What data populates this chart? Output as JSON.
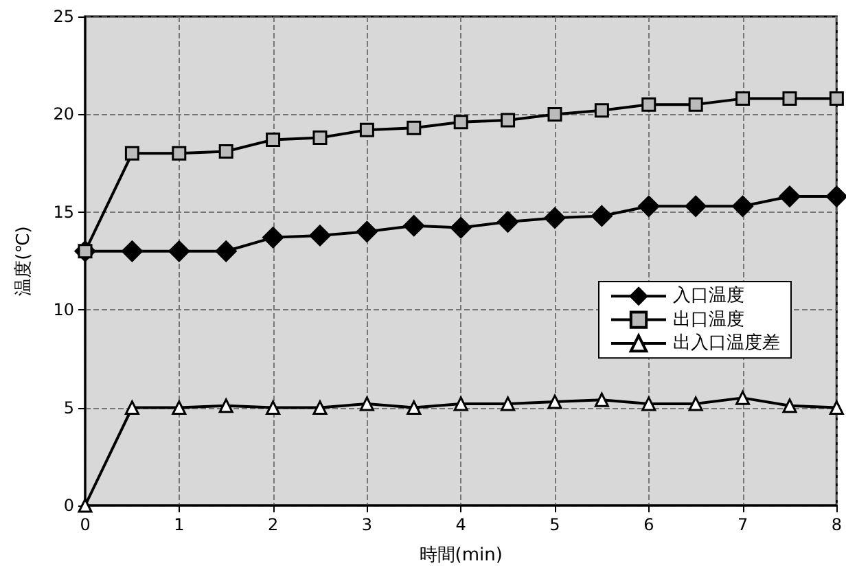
{
  "chart_data": {
    "type": "line",
    "xlabel": "時間(min)",
    "ylabel": "温度(℃)",
    "x": [
      0,
      0.5,
      1,
      1.5,
      2,
      2.5,
      3,
      3.5,
      4,
      4.5,
      5,
      5.5,
      6,
      6.5,
      7,
      7.5,
      8
    ],
    "series": [
      {
        "name": "入口温度",
        "color": "#000000",
        "marker": "diamond",
        "values": [
          13,
          13,
          13,
          13,
          13.7,
          13.8,
          14,
          14.3,
          14.2,
          14.5,
          14.7,
          14.8,
          15.3,
          15.3,
          15.3,
          15.8,
          15.8
        ]
      },
      {
        "name": "出口温度",
        "color": "#000000",
        "marker": "square",
        "values": [
          13,
          18,
          18,
          18.1,
          18.7,
          18.8,
          19.2,
          19.3,
          19.6,
          19.7,
          20,
          20.2,
          20.5,
          20.5,
          20.8,
          20.8,
          20.8
        ]
      },
      {
        "name": "出入口温度差",
        "color": "#000000",
        "marker": "triangle",
        "values": [
          0,
          5,
          5,
          5.1,
          5,
          5,
          5.2,
          5,
          5.2,
          5.2,
          5.3,
          5.4,
          5.2,
          5.2,
          5.5,
          5.1,
          5
        ]
      }
    ],
    "xlim": [
      0,
      8
    ],
    "xticks": [
      0,
      1,
      2,
      3,
      4,
      5,
      6,
      7,
      8
    ],
    "ylim": [
      0,
      25
    ],
    "yticks": [
      0,
      5,
      10,
      15,
      20,
      25
    ],
    "grid": true,
    "legend": "right",
    "line_style": "solid"
  }
}
